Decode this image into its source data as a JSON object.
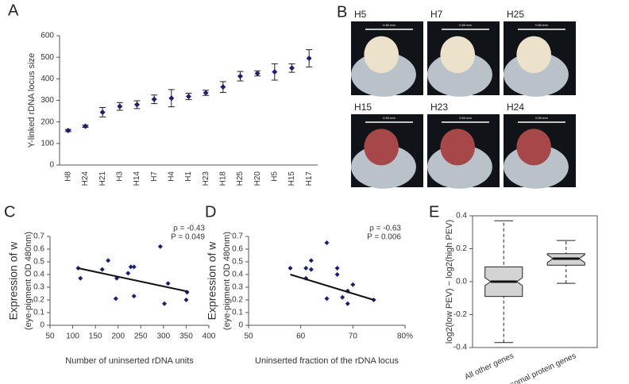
{
  "chart_data": [
    {
      "type": "errorbar",
      "panel_label": "A",
      "ylabel": "Y-linked rDNA locus size",
      "categories": [
        "H8",
        "H24",
        "H21",
        "H3",
        "H14",
        "H7",
        "H4",
        "H1",
        "H23",
        "H18",
        "H25",
        "H20",
        "H5",
        "H15",
        "H17"
      ],
      "values": [
        160,
        180,
        245,
        272,
        280,
        305,
        310,
        318,
        335,
        362,
        412,
        425,
        432,
        450,
        495
      ],
      "errors": [
        5,
        5,
        22,
        18,
        18,
        20,
        40,
        15,
        12,
        25,
        22,
        12,
        38,
        20,
        40
      ],
      "color": "#1b1f6e",
      "ylim": [
        0,
        600
      ],
      "yticks": [
        0,
        100,
        200,
        300,
        400,
        500,
        600
      ]
    },
    {
      "type": "scatter",
      "panel_label": "C",
      "ylabel": "Expression of w",
      "ylabel2": "(eye-pigment OD 480nm)",
      "xlabel": "Number of uninserted rDNA units",
      "x": [
        112,
        117,
        165,
        178,
        195,
        197,
        222,
        228,
        235,
        235,
        293,
        302,
        310,
        350,
        352
      ],
      "values": [
        0.45,
        0.37,
        0.44,
        0.51,
        0.21,
        0.37,
        0.41,
        0.46,
        0.46,
        0.23,
        0.62,
        0.17,
        0.33,
        0.2,
        0.26
      ],
      "trendline": {
        "x": [
          112,
          355
        ],
        "values": [
          0.45,
          0.265
        ]
      },
      "annotations": [
        "ρ = -0.43",
        "P = 0.049"
      ],
      "color": "#1b1f6e",
      "xlim": [
        50,
        400
      ],
      "xticks": [
        50,
        100,
        150,
        200,
        250,
        300,
        350,
        400
      ],
      "ylim": [
        0,
        0.7
      ],
      "yticks": [
        0,
        0.1,
        0.2,
        0.3,
        0.4,
        0.5,
        0.6,
        0.7
      ]
    },
    {
      "type": "scatter",
      "panel_label": "D",
      "ylabel": "Expression of w",
      "ylabel2": "(eye-pigment OD 480nm)",
      "xlabel": "Uninserted fraction of the rDNA locus",
      "x": [
        58,
        61,
        61,
        62,
        62,
        65,
        65,
        67,
        67,
        68,
        69,
        69,
        70,
        74
      ],
      "values": [
        0.45,
        0.45,
        0.37,
        0.44,
        0.51,
        0.65,
        0.21,
        0.45,
        0.4,
        0.22,
        0.17,
        0.27,
        0.32,
        0.2
      ],
      "trendline": {
        "x": [
          58,
          74
        ],
        "values": [
          0.4,
          0.2
        ]
      },
      "annotations": [
        "ρ = -0.63",
        "P = 0.006"
      ],
      "color": "#1b1f6e",
      "xlim": [
        50,
        80
      ],
      "xticks": [
        50,
        60,
        70,
        {
          "value": 80,
          "label": "80%"
        }
      ],
      "ylim": [
        0,
        0.7
      ],
      "yticks": [
        0,
        0.1,
        0.2,
        0.3,
        0.4,
        0.5,
        0.6,
        0.7
      ]
    },
    {
      "type": "box",
      "panel_label": "E",
      "ylabel": "log2(low PEV) − log2(high PEV)",
      "categories": [
        "All other genes",
        "Ribosomal protein genes"
      ],
      "boxes": [
        {
          "min": -0.37,
          "q1": -0.09,
          "median": 0,
          "q3": 0.09,
          "max": 0.37
        },
        {
          "min": -0.01,
          "q1": 0.1,
          "median": 0.14,
          "q3": 0.17,
          "max": 0.25
        }
      ],
      "color": "#d3d3d3",
      "ylim": [
        -0.4,
        0.4
      ],
      "yticks": [
        -0.4,
        -0.2,
        {
          "value": 0,
          "label": "0.0"
        },
        0.2,
        0.4
      ]
    }
  ],
  "photo_panel": {
    "label": "B",
    "captions": [
      "H5",
      "H7",
      "H25",
      "H15",
      "H23",
      "H24"
    ],
    "scale_text": "0.50 mm"
  }
}
